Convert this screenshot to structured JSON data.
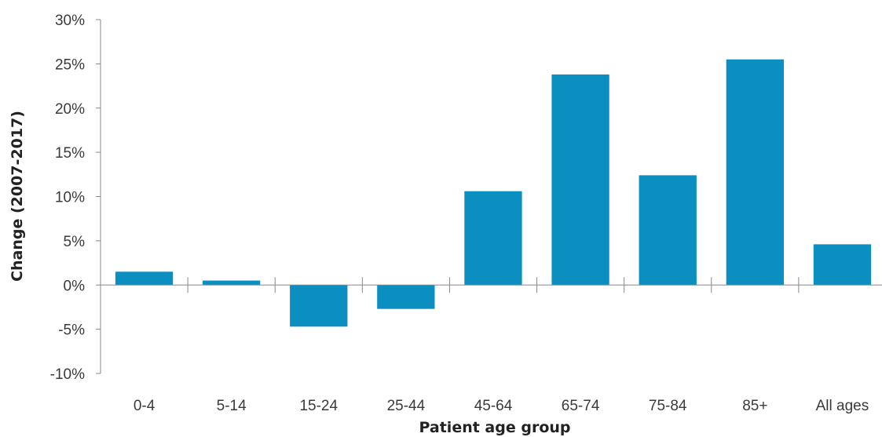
{
  "chart_data": {
    "type": "bar",
    "title": "",
    "xlabel": "Patient age group",
    "ylabel": "Change (2007-2017)",
    "categories": [
      "0-4",
      "5-14",
      "15-24",
      "25-44",
      "45-64",
      "65-74",
      "75-84",
      "85+",
      "All ages"
    ],
    "values": [
      1.5,
      0.5,
      -4.7,
      -2.7,
      10.6,
      23.8,
      12.4,
      25.5,
      4.6
    ],
    "ylim": [
      -10,
      30
    ],
    "yticks": [
      -10,
      -5,
      0,
      5,
      10,
      15,
      20,
      25,
      30
    ],
    "ytick_labels": [
      "-10%",
      "-5%",
      "0%",
      "5%",
      "10%",
      "15%",
      "20%",
      "25%",
      "30%"
    ],
    "y_unit": "%",
    "grid": false,
    "legend": "none",
    "bar_color": "#0a8fc0",
    "axis_color": "#888888",
    "text_color": "#3a3a3a"
  }
}
